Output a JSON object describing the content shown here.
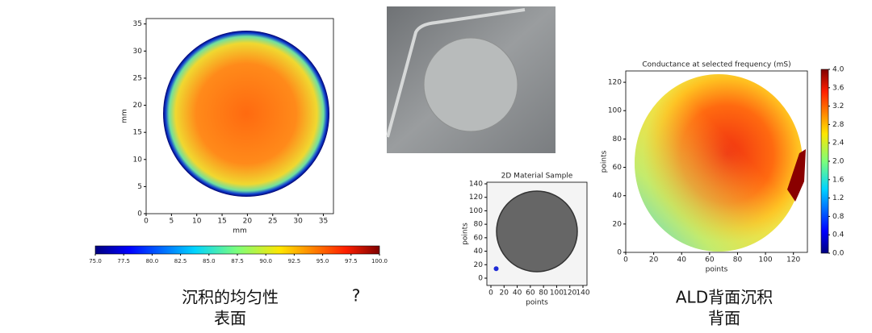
{
  "chart_data": [
    {
      "type": "heatmap",
      "xlabel": "mm",
      "ylabel": "mm",
      "xlim": [
        0,
        37
      ],
      "ylim": [
        0,
        36
      ],
      "xticks": [
        0,
        5,
        10,
        15,
        20,
        25,
        30,
        35
      ],
      "yticks": [
        0,
        5,
        10,
        15,
        20,
        25,
        30,
        35
      ],
      "colorbar": {
        "orientation": "horizontal",
        "lim": [
          75,
          100
        ],
        "ticks": [
          {
            "value": 75,
            "label": "75.0"
          },
          {
            "value": 77.5,
            "label": "77.5"
          },
          {
            "value": 80,
            "label": "80.0"
          },
          {
            "value": 82.5,
            "label": "82.5"
          },
          {
            "value": 85,
            "label": "85.0"
          },
          {
            "value": 87.5,
            "label": "87.5"
          },
          {
            "value": 90,
            "label": "90.0"
          },
          {
            "value": 92.5,
            "label": "92.5"
          },
          {
            "value": 95,
            "label": "95.0"
          },
          {
            "value": 97.5,
            "label": "97.5"
          },
          {
            "value": 100,
            "label": "100.0"
          }
        ]
      }
    },
    {
      "type": "heatmap",
      "title": "2D Material Sample",
      "xlabel": "points",
      "ylabel": "points",
      "xlim": [
        0,
        140
      ],
      "ylim": [
        0,
        140
      ],
      "xticks": [
        0,
        20,
        40,
        60,
        80,
        100,
        120,
        140
      ],
      "yticks": [
        0,
        20,
        40,
        60,
        80,
        100,
        120,
        140
      ],
      "markers": {
        "x": [
          8
        ],
        "y": [
          14
        ],
        "color": "#1f2bd6"
      }
    },
    {
      "type": "heatmap",
      "title": "Conductance at selected frequency (mS)",
      "xlabel": "points",
      "ylabel": "points",
      "xlim": [
        0,
        130
      ],
      "ylim": [
        0,
        128
      ],
      "xticks": [
        0,
        20,
        40,
        60,
        80,
        100,
        120
      ],
      "yticks": [
        0,
        20,
        40,
        60,
        80,
        100,
        120
      ],
      "colorbar": {
        "orientation": "vertical",
        "lim": [
          0,
          4
        ],
        "ticks": [
          {
            "value": 0,
            "label": "0.0"
          },
          {
            "value": 0.4,
            "label": "0.4"
          },
          {
            "value": 0.8,
            "label": "0.8"
          },
          {
            "value": 1.2,
            "label": "1.2"
          },
          {
            "value": 1.6,
            "label": "1.6"
          },
          {
            "value": 2,
            "label": "2.0"
          },
          {
            "value": 2.4,
            "label": "2.4"
          },
          {
            "value": 2.8,
            "label": "2.8"
          },
          {
            "value": 3.2,
            "label": "3.2"
          },
          {
            "value": 3.6,
            "label": "3.6"
          },
          {
            "value": 4,
            "label": "4.0"
          }
        ]
      }
    }
  ],
  "captions": {
    "left_line1": "沉积的均匀性",
    "left_line2": "表面",
    "stray": "?",
    "right_line1": "ALD背面沉积",
    "right_line2": "背面"
  }
}
